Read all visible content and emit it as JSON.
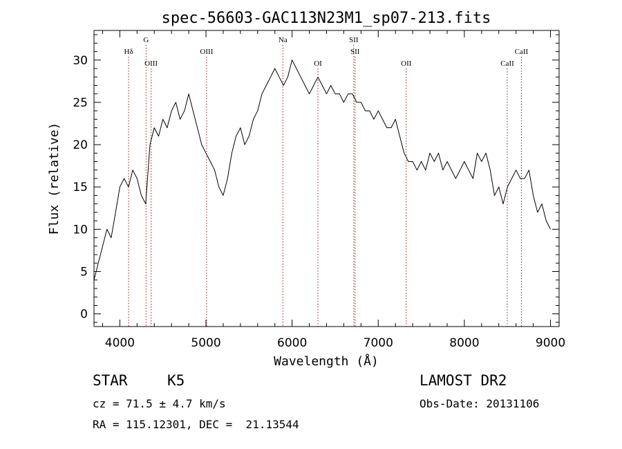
{
  "chart_data": {
    "type": "line",
    "title": "spec-56603-GAC113N23M1_sp07-213.fits",
    "xlabel": "Wavelength (Å)",
    "ylabel": "Flux (relative)",
    "xlim": [
      3700,
      9100
    ],
    "ylim": [
      -1.5,
      33.5
    ],
    "xticks": [
      4000,
      5000,
      6000,
      7000,
      8000,
      9000
    ],
    "yticks": [
      0,
      5,
      10,
      15,
      20,
      25,
      30
    ],
    "line_color": "#000000",
    "marker_color": "#a01010",
    "series": [
      {
        "x": [
          3700,
          3750,
          3800,
          3850,
          3900,
          3950,
          4000,
          4050,
          4100,
          4150,
          4200,
          4250,
          4300,
          4350,
          4400,
          4450,
          4500,
          4550,
          4600,
          4650,
          4700,
          4750,
          4800,
          4850,
          4900,
          4950,
          5000,
          5050,
          5100,
          5150,
          5200,
          5250,
          5300,
          5350,
          5400,
          5450,
          5500,
          5550,
          5600,
          5650,
          5700,
          5750,
          5800,
          5850,
          5900,
          5950,
          6000,
          6050,
          6100,
          6150,
          6200,
          6250,
          6300,
          6350,
          6400,
          6450,
          6500,
          6550,
          6600,
          6650,
          6700,
          6750,
          6800,
          6850,
          6900,
          6950,
          7000,
          7050,
          7100,
          7150,
          7200,
          7250,
          7300,
          7350,
          7400,
          7450,
          7500,
          7550,
          7600,
          7650,
          7700,
          7750,
          7800,
          7850,
          7900,
          7950,
          8000,
          8050,
          8100,
          8150,
          8200,
          8250,
          8300,
          8350,
          8400,
          8450,
          8500,
          8550,
          8600,
          8650,
          8700,
          8750,
          8800,
          8850,
          8900,
          8950,
          9000
        ],
        "y": [
          4,
          6,
          8,
          10,
          9,
          12,
          15,
          16,
          15,
          17,
          16,
          14,
          13,
          20,
          22,
          21,
          23,
          22,
          24,
          25,
          23,
          24,
          26,
          24,
          22,
          20,
          19,
          18,
          17,
          15,
          14,
          16,
          19,
          21,
          22,
          20,
          21,
          23,
          24,
          26,
          27,
          28,
          29,
          28,
          27,
          28,
          30,
          29,
          28,
          27,
          26,
          27,
          28,
          27,
          26,
          27,
          26,
          26,
          25,
          26,
          26,
          25,
          25,
          24,
          24,
          23,
          24,
          23,
          22,
          22,
          23,
          21,
          19,
          18,
          18,
          17,
          18,
          17,
          19,
          18,
          19,
          17,
          18,
          17,
          16,
          17,
          18,
          17,
          16,
          19,
          18,
          19,
          17,
          14,
          15,
          13,
          15,
          16,
          17,
          16,
          16,
          17,
          14,
          12,
          13,
          11,
          10
        ]
      }
    ],
    "lines": [
      {
        "label": "Hδ",
        "x": 4102,
        "row": 1
      },
      {
        "label": "G",
        "x": 4305,
        "row": 0
      },
      {
        "label": "OIII",
        "x": 4363,
        "row": 2
      },
      {
        "label": "OIII",
        "x": 5007,
        "row": 1
      },
      {
        "label": "Na",
        "x": 5893,
        "row": 0
      },
      {
        "label": "OI",
        "x": 6300,
        "row": 2
      },
      {
        "label": "SII",
        "x": 6716,
        "row": 0
      },
      {
        "label": "SII",
        "x": 6731,
        "row": 1
      },
      {
        "label": "OII",
        "x": 7325,
        "row": 2
      },
      {
        "label": "CaII",
        "x": 8498,
        "row": 2
      },
      {
        "label": "CaII",
        "x": 8662,
        "row": 1
      }
    ]
  },
  "info": {
    "class": "STAR",
    "subclass": "K5",
    "cz": "cz = 71.5 ± 4.7 km/s",
    "coords": "RA = 115.12301, DEC =  21.13544",
    "survey": "LAMOST DR2",
    "obs_date": "Obs-Date: 20131106"
  }
}
